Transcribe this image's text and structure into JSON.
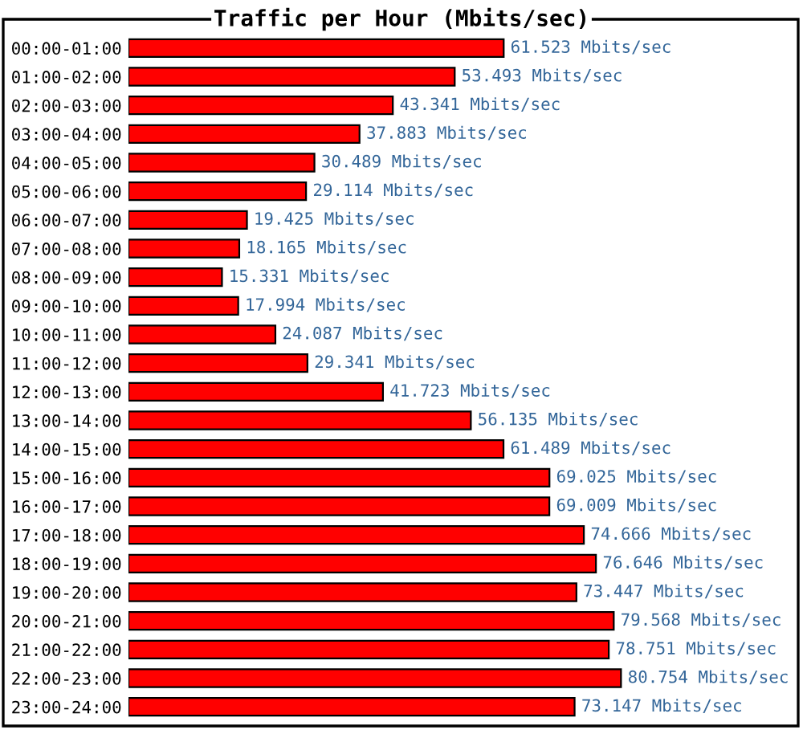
{
  "chart_data": {
    "type": "bar",
    "orientation": "horizontal",
    "title": "Traffic per Hour (Mbits/sec)",
    "categories": [
      "00:00-01:00",
      "01:00-02:00",
      "02:00-03:00",
      "03:00-04:00",
      "04:00-05:00",
      "05:00-06:00",
      "06:00-07:00",
      "07:00-08:00",
      "08:00-09:00",
      "09:00-10:00",
      "10:00-11:00",
      "11:00-12:00",
      "12:00-13:00",
      "13:00-14:00",
      "14:00-15:00",
      "15:00-16:00",
      "16:00-17:00",
      "17:00-18:00",
      "18:00-19:00",
      "19:00-20:00",
      "20:00-21:00",
      "21:00-22:00",
      "22:00-23:00",
      "23:00-24:00"
    ],
    "values": [
      61.523,
      53.493,
      43.341,
      37.883,
      30.489,
      29.114,
      19.425,
      18.165,
      15.331,
      17.994,
      24.087,
      29.341,
      41.723,
      56.135,
      61.489,
      69.025,
      69.009,
      74.666,
      76.646,
      73.447,
      79.568,
      78.751,
      80.754,
      73.147
    ],
    "value_labels": [
      "61.523 Mbits/sec",
      "53.493 Mbits/sec",
      "43.341 Mbits/sec",
      "37.883 Mbits/sec",
      "30.489 Mbits/sec",
      "29.114 Mbits/sec",
      "19.425 Mbits/sec",
      "18.165 Mbits/sec",
      "15.331 Mbits/sec",
      "17.994 Mbits/sec",
      "24.087 Mbits/sec",
      "29.341 Mbits/sec",
      "41.723 Mbits/sec",
      "56.135 Mbits/sec",
      "61.489 Mbits/sec",
      "69.025 Mbits/sec",
      "69.009 Mbits/sec",
      "74.666 Mbits/sec",
      "76.646 Mbits/sec",
      "73.447 Mbits/sec",
      "79.568 Mbits/sec",
      "78.751 Mbits/sec",
      "80.754 Mbits/sec",
      "73.147 Mbits/sec"
    ],
    "color": "#ff0000"
  }
}
